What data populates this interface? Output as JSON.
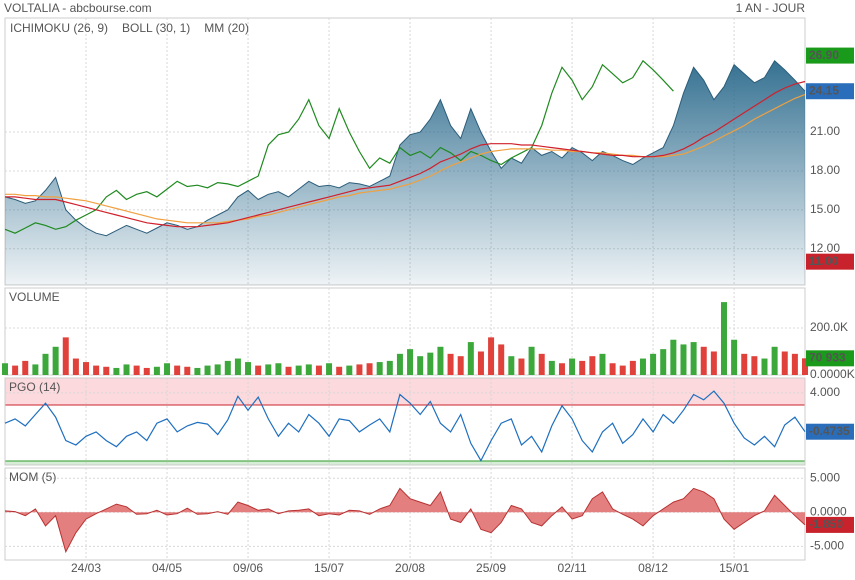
{
  "header": {
    "title": "VOLTALIA - abcbourse.com",
    "period": "1 AN - JOUR"
  },
  "chart_data": [
    {
      "type": "area",
      "color": "#2b5d7a",
      "gradient": true,
      "values": [
        16.0,
        15.8,
        15.5,
        15.7,
        16.5,
        17.5,
        15.0,
        14.2,
        13.6,
        13.2,
        13.0,
        13.4,
        13.8,
        13.5,
        13.2,
        13.6,
        14.0,
        13.8,
        13.5,
        13.7,
        14.2,
        14.6,
        15.0,
        16.0,
        16.5,
        15.8,
        16.2,
        16.4,
        16.0,
        16.6,
        17.2,
        16.8,
        16.9,
        16.7,
        17.1,
        17.0,
        16.8,
        17.2,
        17.6,
        20.0,
        20.8,
        21.0,
        22.0,
        23.5,
        21.5,
        20.5,
        22.8,
        21.0,
        19.5,
        18.2,
        19.0,
        18.6,
        19.8,
        19.2,
        19.5,
        19.0,
        19.8,
        19.4,
        18.8,
        19.5,
        19.2,
        18.8,
        18.5,
        19.0,
        19.4,
        19.8,
        21.5,
        24.0,
        26.0,
        25.0,
        23.5,
        24.5,
        26.2,
        25.5,
        24.8,
        25.2,
        26.5,
        25.8,
        25.0,
        24.15
      ],
      "series": [
        {
          "name": "ICHIMOKU (26, 9)",
          "color": "#1f8a1f",
          "values": [
            13.5,
            13.2,
            13.6,
            14.0,
            13.8,
            13.5,
            13.7,
            14.2,
            14.6,
            15.0,
            16.0,
            16.5,
            15.8,
            16.2,
            16.4,
            16.0,
            16.6,
            17.2,
            16.8,
            16.9,
            16.7,
            17.1,
            17.0,
            16.8,
            17.2,
            17.6,
            20.0,
            20.8,
            21.0,
            22.0,
            23.5,
            21.5,
            20.5,
            22.8,
            21.0,
            19.5,
            18.2,
            19.0,
            18.6,
            19.8,
            19.2,
            19.5,
            19.0,
            19.8,
            19.4,
            18.8,
            19.5,
            19.2,
            18.8,
            18.5,
            19.0,
            19.4,
            19.8,
            21.5,
            24.0,
            26.0,
            25.0,
            23.5,
            24.5,
            26.2,
            25.5,
            24.8,
            25.2,
            26.5,
            25.8,
            25.0,
            24.15,
            null,
            null,
            null,
            null,
            null,
            null,
            null,
            null,
            null,
            null,
            null,
            null,
            null
          ]
        },
        {
          "name": "BOLL (30, 1)",
          "color": "#f0a040",
          "values": [
            16.2,
            16.2,
            16.1,
            16.1,
            16.0,
            16.0,
            15.9,
            15.8,
            15.7,
            15.5,
            15.3,
            15.1,
            14.9,
            14.7,
            14.5,
            14.3,
            14.2,
            14.1,
            14.0,
            14.0,
            14.0,
            14.0,
            14.1,
            14.2,
            14.3,
            14.5,
            14.6,
            14.8,
            15.0,
            15.2,
            15.4,
            15.6,
            15.8,
            16.0,
            16.1,
            16.3,
            16.4,
            16.5,
            16.6,
            16.8,
            17.0,
            17.3,
            17.6,
            18.0,
            18.4,
            18.7,
            19.0,
            19.3,
            19.5,
            19.6,
            19.7,
            19.7,
            19.7,
            19.7,
            19.6,
            19.6,
            19.5,
            19.5,
            19.4,
            19.4,
            19.3,
            19.2,
            19.2,
            19.1,
            19.1,
            19.1,
            19.2,
            19.3,
            19.6,
            19.9,
            20.3,
            20.7,
            21.1,
            21.5,
            22.0,
            22.4,
            22.8,
            23.2,
            23.6,
            23.9
          ]
        },
        {
          "name": "MM (20)",
          "color": "#d0202c",
          "values": [
            16.0,
            16.0,
            15.9,
            15.8,
            15.8,
            15.8,
            15.6,
            15.4,
            15.2,
            15.0,
            14.8,
            14.6,
            14.4,
            14.2,
            14.0,
            13.9,
            13.8,
            13.7,
            13.7,
            13.7,
            13.8,
            13.9,
            14.0,
            14.2,
            14.4,
            14.6,
            14.8,
            15.0,
            15.2,
            15.4,
            15.6,
            15.8,
            16.0,
            16.2,
            16.4,
            16.6,
            16.7,
            16.8,
            16.9,
            17.2,
            17.5,
            17.8,
            18.2,
            18.7,
            19.0,
            19.3,
            19.7,
            20.0,
            20.1,
            20.1,
            20.1,
            20.0,
            20.0,
            19.9,
            19.8,
            19.7,
            19.6,
            19.5,
            19.4,
            19.3,
            19.2,
            19.2,
            19.1,
            19.1,
            19.1,
            19.2,
            19.4,
            19.7,
            20.1,
            20.6,
            21.0,
            21.5,
            22.0,
            22.5,
            23.0,
            23.5,
            24.0,
            24.4,
            24.7,
            24.9
          ]
        }
      ],
      "ylim": [
        9.2,
        29.8
      ],
      "yticks": [
        {
          "value": 12,
          "label": "12.00"
        },
        {
          "value": 15,
          "label": "15.00"
        },
        {
          "value": 18,
          "label": "18.00"
        },
        {
          "value": 21,
          "label": "21.00"
        }
      ],
      "badges": [
        {
          "value": 26.9,
          "label": "26.90",
          "color": "#1a9a1a"
        },
        {
          "value": 24.15,
          "label": "24.15",
          "color": "#2a6ebb"
        },
        {
          "value": 11,
          "label": "11.00",
          "color": "#c8232c"
        }
      ],
      "grid": true
    },
    {
      "type": "bar",
      "title": "VOLUME",
      "title_color": "#3ca83c",
      "up_color": "#3ca83c",
      "down_color": "#e0413b",
      "values": [
        50000,
        40000,
        60000,
        45000,
        90000,
        120000,
        160000,
        70000,
        55000,
        40000,
        35000,
        30000,
        45000,
        40000,
        30000,
        35000,
        50000,
        40000,
        35000,
        30000,
        40000,
        45000,
        60000,
        70000,
        55000,
        40000,
        45000,
        50000,
        35000,
        40000,
        45000,
        40000,
        50000,
        35000,
        40000,
        45000,
        50000,
        55000,
        60000,
        90000,
        110000,
        80000,
        95000,
        120000,
        90000,
        80000,
        140000,
        100000,
        160000,
        130000,
        80000,
        70000,
        120000,
        90000,
        60000,
        50000,
        70000,
        60000,
        80000,
        90000,
        50000,
        40000,
        60000,
        70000,
        90000,
        110000,
        150000,
        130000,
        140000,
        120000,
        100000,
        310000,
        150000,
        90000,
        80000,
        70000,
        120000,
        100000,
        90000,
        70933
      ],
      "ylim": [
        0,
        370000
      ],
      "yticks": [
        {
          "value": 200000,
          "label": "200.0K"
        },
        {
          "value": 0,
          "label": "0.0000K"
        }
      ],
      "badges": [
        {
          "value": 70933,
          "label": "70 933",
          "color": "#1a9a1a"
        }
      ],
      "grid": true
    },
    {
      "type": "line",
      "title": "PGO (14)",
      "title_color": "#1f5fbf",
      "color": "#1f6fc0",
      "values": [
        0.5,
        1.0,
        0.2,
        1.5,
        2.8,
        1.2,
        -1.5,
        -2.0,
        -1.0,
        -0.5,
        -1.5,
        -2.2,
        -1.0,
        -0.5,
        -1.5,
        0.5,
        1.0,
        -0.5,
        0.2,
        0.6,
        0.4,
        -0.8,
        0.9,
        3.6,
        2.0,
        3.5,
        1.0,
        -1.0,
        0.5,
        -0.5,
        1.5,
        0.5,
        -1.0,
        1.0,
        0.8,
        -0.5,
        0.3,
        1.0,
        -0.5,
        3.8,
        2.8,
        1.5,
        3.0,
        0.5,
        -0.5,
        1.5,
        -1.8,
        -3.8,
        -1.5,
        0.5,
        1.0,
        -2.0,
        -1.0,
        -2.8,
        0.2,
        2.5,
        1.0,
        -1.5,
        -2.8,
        -0.5,
        0.5,
        -1.8,
        -0.8,
        1.0,
        -0.5,
        1.5,
        0.5,
        2.0,
        3.8,
        3.2,
        4.2,
        2.8,
        0.5,
        -1.2,
        -2.0,
        -1.0,
        -2.2,
        0.3,
        1.2,
        -0.4735
      ],
      "ylim": [
        -4.3,
        5.7
      ],
      "yticks": [
        {
          "value": 4,
          "label": "4.000"
        }
      ],
      "badges": [
        {
          "value": -0.4735,
          "label": "-0.4735",
          "color": "#2a6ebb"
        }
      ],
      "grid": true
    },
    {
      "type": "area",
      "title": "MOM (5)",
      "title_color": "#c8232c",
      "color": "#b83232",
      "fill": "#e37f7f",
      "values": [
        0.2,
        0.1,
        -0.5,
        0.5,
        -2.0,
        -0.5,
        -5.8,
        -3.0,
        -1.0,
        -0.2,
        0.5,
        1.2,
        0.8,
        -0.3,
        -0.2,
        0.3,
        -0.4,
        -0.2,
        0.6,
        -0.3,
        -0.2,
        0.1,
        -0.3,
        1.5,
        1.0,
        0.3,
        0.5,
        -0.2,
        0.2,
        0.3,
        0.5,
        -0.5,
        -0.2,
        -0.4,
        0.3,
        0.2,
        -0.3,
        0.5,
        1.0,
        3.5,
        2.0,
        1.5,
        1.0,
        3.0,
        -1.0,
        -1.5,
        0.5,
        -2.5,
        -3.0,
        -1.5,
        1.0,
        0.5,
        -1.5,
        -2.0,
        -0.5,
        0.8,
        -1.0,
        -0.5,
        2.0,
        3.0,
        0.5,
        -0.3,
        -1.0,
        -2.0,
        -0.5,
        0.5,
        1.5,
        2.0,
        3.5,
        3.0,
        2.0,
        -1.0,
        -2.5,
        -1.5,
        -0.5,
        0.2,
        2.5,
        1.0,
        -0.5,
        -1.85
      ],
      "ylim": [
        -7,
        6.5
      ],
      "yticks": [
        {
          "value": 5,
          "label": "5.000"
        },
        {
          "value": 0,
          "label": "0.0000"
        },
        {
          "value": -5,
          "label": "-5.000"
        }
      ],
      "badges": [
        {
          "value": -1.85,
          "label": "-1.850",
          "color": "#c8232c"
        }
      ],
      "xticks": [
        {
          "value": 8,
          "label": "24/03"
        },
        {
          "value": 16,
          "label": "04/05"
        },
        {
          "value": 24,
          "label": "09/06"
        },
        {
          "value": 32,
          "label": "15/07"
        },
        {
          "value": 40,
          "label": "20/08"
        },
        {
          "value": 48,
          "label": "25/09"
        },
        {
          "value": 56,
          "label": "02/11"
        },
        {
          "value": 64,
          "label": "08/12"
        },
        {
          "value": 72,
          "label": "15/01"
        }
      ],
      "grid": true
    }
  ]
}
